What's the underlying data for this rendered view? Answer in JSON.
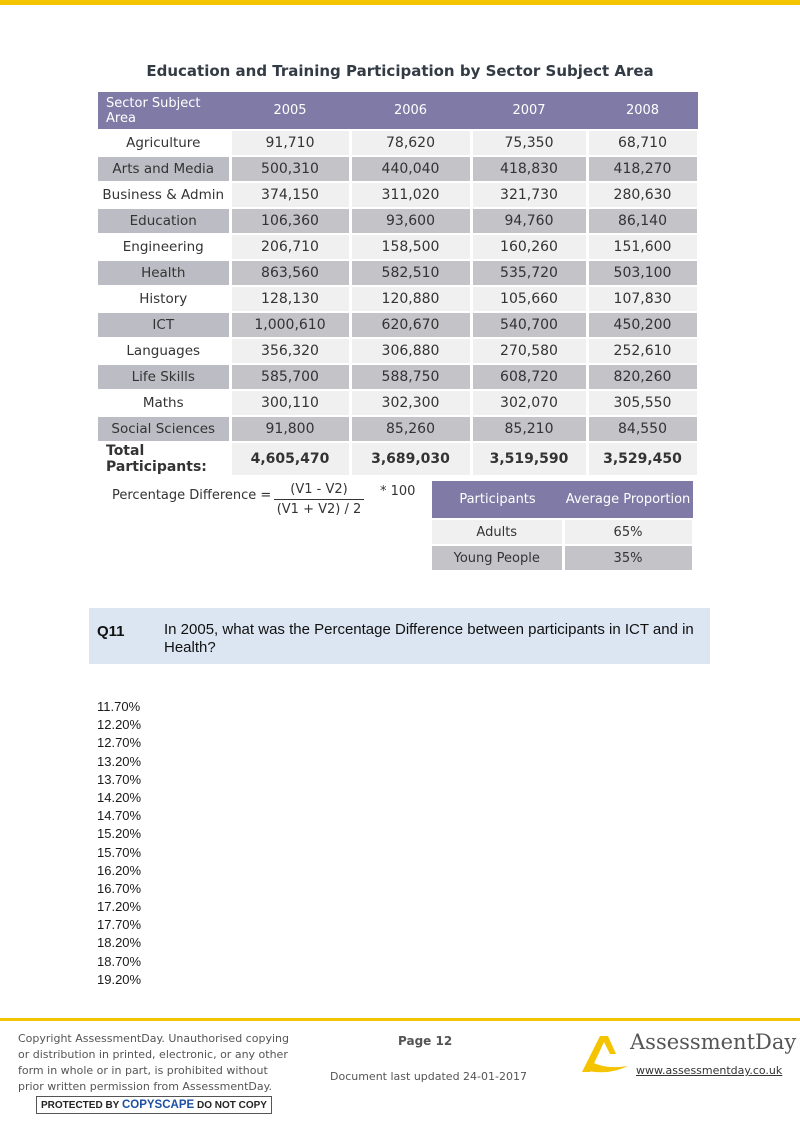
{
  "title": "Education and Training Participation by Sector Subject Area",
  "table": {
    "headers": [
      "Sector Subject Area",
      "2005",
      "2006",
      "2007",
      "2008"
    ],
    "rows": [
      {
        "area": "Agriculture",
        "values": [
          "91,710",
          "78,620",
          "75,350",
          "68,710"
        ]
      },
      {
        "area": "Arts and Media",
        "values": [
          "500,310",
          "440,040",
          "418,830",
          "418,270"
        ]
      },
      {
        "area": "Business & Admin",
        "values": [
          "374,150",
          "311,020",
          "321,730",
          "280,630"
        ]
      },
      {
        "area": "Education",
        "values": [
          "106,360",
          "93,600",
          "94,760",
          "86,140"
        ]
      },
      {
        "area": "Engineering",
        "values": [
          "206,710",
          "158,500",
          "160,260",
          "151,600"
        ]
      },
      {
        "area": "Health",
        "values": [
          "863,560",
          "582,510",
          "535,720",
          "503,100"
        ]
      },
      {
        "area": "History",
        "values": [
          "128,130",
          "120,880",
          "105,660",
          "107,830"
        ]
      },
      {
        "area": "ICT",
        "values": [
          "1,000,610",
          "620,670",
          "540,700",
          "450,200"
        ]
      },
      {
        "area": "Languages",
        "values": [
          "356,320",
          "306,880",
          "270,580",
          "252,610"
        ]
      },
      {
        "area": "Life Skills",
        "values": [
          "585,700",
          "588,750",
          "608,720",
          "820,260"
        ]
      },
      {
        "area": "Maths",
        "values": [
          "300,110",
          "302,300",
          "302,070",
          "305,550"
        ]
      },
      {
        "area": "Social Sciences",
        "values": [
          "91,800",
          "85,260",
          "85,210",
          "84,550"
        ]
      }
    ],
    "total_label": "Total Participants:",
    "totals": [
      "4,605,470",
      "3,689,030",
      "3,519,590",
      "3,529,450"
    ]
  },
  "formula": {
    "label": "Percentage Difference =",
    "numerator": "(V1 - V2)",
    "denominator": "(V1 + V2) / 2",
    "multiplier": "* 100"
  },
  "proportion_table": {
    "headers": [
      "Participants",
      "Average Proportion"
    ],
    "rows": [
      {
        "group": "Adults",
        "value": "65%"
      },
      {
        "group": "Young People",
        "value": "35%"
      }
    ]
  },
  "question": {
    "number": "Q11",
    "text": "In 2005, what was the Percentage Difference between participants in ICT and in Health?"
  },
  "options": [
    "11.70%",
    "12.20%",
    "12.70%",
    "13.20%",
    "13.70%",
    "14.20%",
    "14.70%",
    "15.20%",
    "15.70%",
    "16.20%",
    "16.70%",
    "17.20%",
    "17.70%",
    "18.20%",
    "18.70%",
    "19.20%"
  ],
  "footer": {
    "copyright_lines": [
      "Copyright AssessmentDay. Unauthorised copying",
      "or distribution in printed, electronic, or any other",
      "form in whole or in part, is prohibited without",
      "prior written permission from AssessmentDay."
    ],
    "copyscape_pre": "PROTECTED BY",
    "copyscape_brand": "COPYSCAPE",
    "copyscape_post": "DO NOT COPY",
    "page": "Page 12",
    "updated": "Document last updated 24-01-2017",
    "logo_text": "AssessmentDay",
    "url": "www.assessmentday.co.uk"
  },
  "colors": {
    "accent_yellow": "#f5c400",
    "header_purple": "#7f7aa6",
    "question_bg": "#dce6f2"
  }
}
